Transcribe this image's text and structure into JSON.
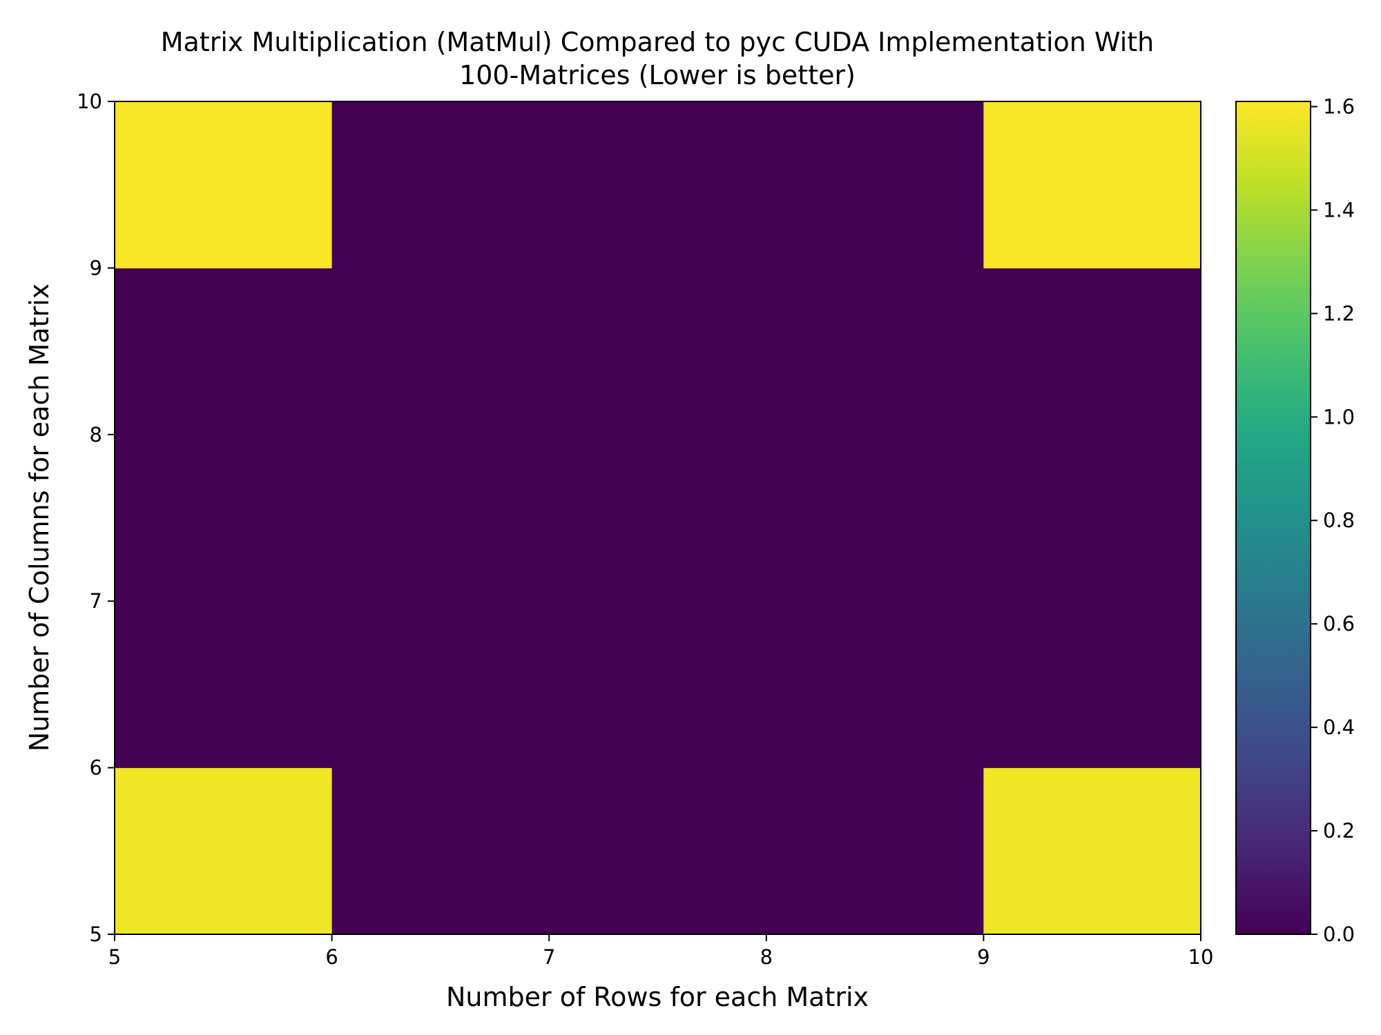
{
  "chart_data": {
    "type": "heatmap",
    "title_lines": [
      "Matrix Multiplication (MatMul) Compared to pyc CUDA Implementation With",
      "100-Matrices (Lower is better)"
    ],
    "xlabel": "Number of Rows for each Matrix",
    "ylabel": "Number of Columns for each Matrix",
    "x_edges": [
      5,
      6,
      7,
      8,
      9,
      10
    ],
    "y_edges": [
      5,
      6,
      7,
      8,
      9,
      10
    ],
    "x_ticks": [
      "5",
      "6",
      "7",
      "8",
      "9",
      "10"
    ],
    "y_ticks": [
      "5",
      "6",
      "7",
      "8",
      "9",
      "10"
    ],
    "xlim": [
      5,
      10
    ],
    "ylim": [
      5,
      10
    ],
    "values_rows_bottom_to_top": [
      [
        1.58,
        0.0,
        0.0,
        0.0,
        1.58
      ],
      [
        0.0,
        0.0,
        0.0,
        0.0,
        0.0
      ],
      [
        0.0,
        0.0,
        0.0,
        0.0,
        0.0
      ],
      [
        0.0,
        0.0,
        0.0,
        0.0,
        0.0
      ],
      [
        1.6,
        0.0,
        0.0,
        0.0,
        1.6
      ]
    ],
    "colorbar": {
      "colormap": "viridis",
      "vmin": 0.0,
      "vmax": 1.61,
      "ticks": [
        0.0,
        0.2,
        0.4,
        0.6,
        0.8,
        1.0,
        1.2,
        1.4,
        1.6
      ],
      "tick_labels": [
        "0.0",
        "0.2",
        "0.4",
        "0.6",
        "0.8",
        "1.0",
        "1.2",
        "1.4",
        "1.6"
      ]
    },
    "grid": false,
    "legend": "none"
  }
}
